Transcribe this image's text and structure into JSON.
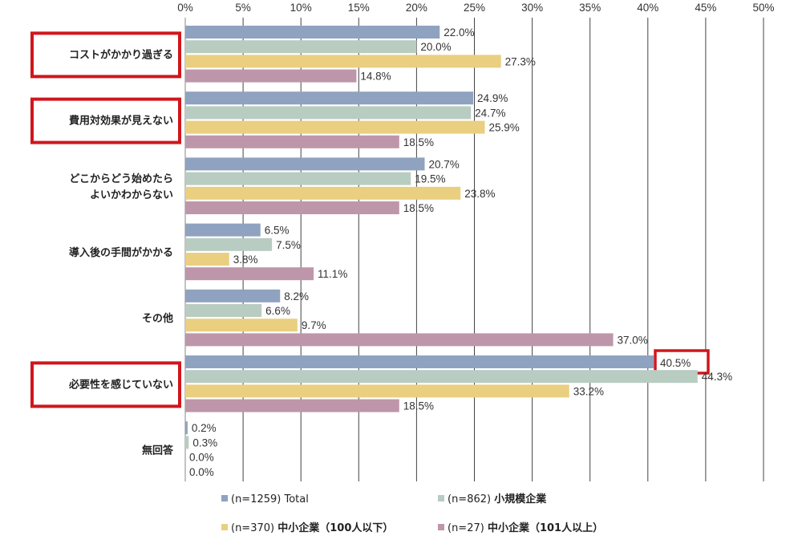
{
  "chart_data": {
    "type": "bar",
    "orientation": "horizontal",
    "title": "",
    "xlabel": "",
    "ylabel": "",
    "xlim": [
      0,
      50
    ],
    "x_ticks": [
      "0%",
      "5%",
      "10%",
      "15%",
      "20%",
      "25%",
      "30%",
      "35%",
      "40%",
      "45%",
      "50%"
    ],
    "grid": true,
    "legend_position": "bottom",
    "categories": [
      {
        "lines": [
          "コストがかかり過ぎる"
        ],
        "highlight": true
      },
      {
        "lines": [
          "費用対効果が見えない"
        ],
        "highlight": true
      },
      {
        "lines": [
          "どこからどう始めたら",
          "よいかわからない"
        ],
        "highlight": false
      },
      {
        "lines": [
          "導入後の手間がかかる"
        ],
        "highlight": false
      },
      {
        "lines": [
          "その他"
        ],
        "highlight": false
      },
      {
        "lines": [
          "必要性を感じていない"
        ],
        "highlight": true
      },
      {
        "lines": [
          "無回答"
        ],
        "highlight": false
      }
    ],
    "series": [
      {
        "legend_n": "(n=1259) ",
        "legend_label": "Total",
        "legend_bold": false,
        "color": "#8FA2BF",
        "values": [
          22.0,
          24.9,
          20.7,
          6.5,
          8.2,
          40.5,
          0.2
        ],
        "labels": [
          "22.0%",
          "24.9%",
          "20.7%",
          "6.5%",
          "8.2%",
          "40.5%",
          "0.2%"
        ]
      },
      {
        "legend_n": "(n=862) ",
        "legend_label": "小規模企業",
        "legend_bold": true,
        "color": "#B8CCC2",
        "values": [
          20.0,
          24.7,
          19.5,
          7.5,
          6.6,
          44.3,
          0.3
        ],
        "labels": [
          "20.0%",
          "24.7%",
          "19.5%",
          "7.5%",
          "6.6%",
          "44.3%",
          "0.3%"
        ]
      },
      {
        "legend_n": "(n=370) ",
        "legend_label": "中小企業（100人以下）",
        "legend_bold": true,
        "color": "#EACF80",
        "values": [
          27.3,
          25.9,
          23.8,
          3.8,
          9.7,
          33.2,
          0.0
        ],
        "labels": [
          "27.3%",
          "25.9%",
          "23.8%",
          "3.8%",
          "9.7%",
          "33.2%",
          "0.0%"
        ]
      },
      {
        "legend_n": "(n=27) ",
        "legend_label": "中小企業（101人以上）",
        "legend_bold": true,
        "color": "#BE96A9",
        "values": [
          14.8,
          18.5,
          18.5,
          11.1,
          37.0,
          18.5,
          0.0
        ],
        "labels": [
          "14.8%",
          "18.5%",
          "18.5%",
          "11.1%",
          "37.0%",
          "18.5%",
          "0.0%"
        ]
      }
    ],
    "highlighted_value": {
      "series": 0,
      "category": 5
    },
    "highlight_color": "#D0161C"
  }
}
